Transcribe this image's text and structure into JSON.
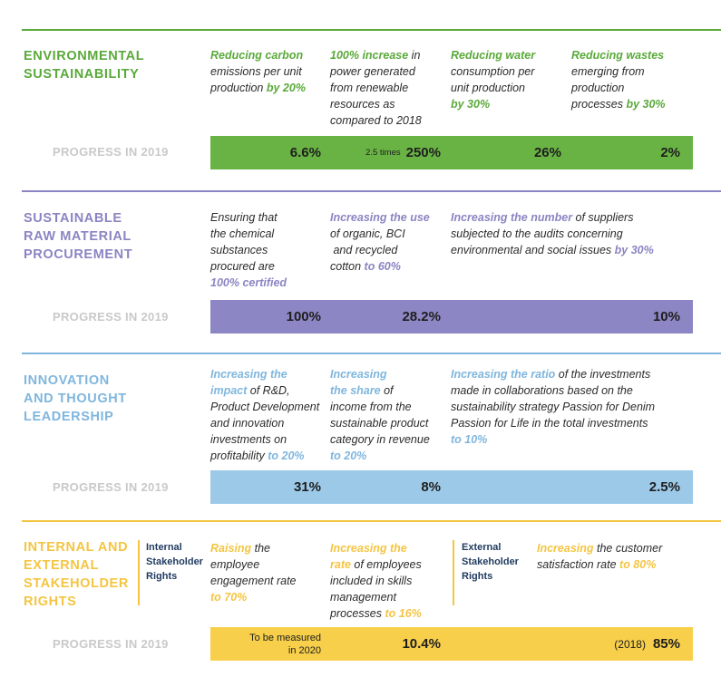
{
  "colors": {
    "green": "#5aa93a",
    "green_box": "#69b344",
    "purple": "#8b84c2",
    "purple_box": "#8c86c4",
    "blue": "#7fb6dd",
    "blue_box": "#9cc9e8",
    "yellow": "#f4c542",
    "yellow_box": "#f7cf4a"
  },
  "progress_label": "PROGRESS IN 2019",
  "sections": {
    "environmental": {
      "title": [
        "ENVIRONMENTAL",
        "SUSTAINABILITY"
      ],
      "goals": [
        {
          "lines": [
            "Reducing carbon",
            "emissions per unit",
            "production"
          ],
          "highlight_first": "Reducing carbon",
          "highlight_end": "by 20%"
        },
        {
          "line1_hl": "100% increase",
          "line1_rest": " in",
          "lines": [
            "power generated",
            "from renewable",
            "resources as",
            "compared to 2018"
          ]
        },
        {
          "line1_hl": "Reducing water",
          "lines": [
            "consumption per",
            "unit production"
          ],
          "highlight_end": "by 30%"
        },
        {
          "line1_hl": "Reducing wastes",
          "lines": [
            "emerging from",
            "production",
            "processes"
          ],
          "highlight_end": "by 30%"
        }
      ],
      "progress": [
        {
          "value": "6.6%"
        },
        {
          "prefix": "2.5 times",
          "value": "250%"
        },
        {
          "value": "26%"
        },
        {
          "value": "2%"
        }
      ]
    },
    "raw_material": {
      "title": [
        "SUSTAINABLE",
        "RAW MATERIAL",
        "PROCUREMENT"
      ],
      "goal1": {
        "lines": [
          "Ensuring that",
          "the chemical",
          "substances",
          "procured are"
        ],
        "highlight_end": "100% certified"
      },
      "goal2": {
        "line1_hl": "Increasing the use",
        "lines": [
          "of organic, BCI",
          " and recycled",
          "cotton"
        ],
        "highlight_end": "to 60%"
      },
      "goal3": {
        "line1_hl": "Increasing the number",
        "line1_rest": " of suppliers",
        "lines": [
          "subjected to the audits concerning",
          "environmental and social issues"
        ],
        "highlight_end": "by 30%"
      },
      "progress": [
        {
          "value": "100%"
        },
        {
          "value": "28.2%"
        },
        {
          "value": "10%"
        }
      ]
    },
    "innovation": {
      "title": [
        "INNOVATION",
        "AND THOUGHT",
        "LEADERSHIP"
      ],
      "goal1": {
        "hl1": "Increasing the",
        "hl2": "impact",
        "rest2": " of R&D,",
        "lines": [
          "Product Development",
          "and innovation",
          "investments on",
          "profitability"
        ],
        "highlight_end": "to 20%"
      },
      "goal2": {
        "hl1": "Increasing",
        "hl2": "the share",
        "rest2": " of",
        "lines": [
          "income from the",
          "sustainable product",
          "category in revenue"
        ],
        "highlight_end": "to 20%"
      },
      "goal3": {
        "line1_hl": "Increasing the ratio",
        "line1_rest": " of the investments",
        "lines": [
          "made in collaborations based on the",
          "sustainability strategy Passion for Denim",
          "Passion for Life in the total investments"
        ],
        "highlight_end": "to 10%"
      },
      "progress": [
        {
          "value": "31%"
        },
        {
          "value": "8%"
        },
        {
          "value": "2.5%"
        }
      ]
    },
    "stakeholder": {
      "title": [
        "INTERNAL AND",
        "EXTERNAL",
        "STAKEHOLDER",
        "RIGHTS"
      ],
      "internal_label": [
        "Internal",
        "Stakeholder",
        "Rights"
      ],
      "external_label": [
        "External",
        "Stakeholder",
        "Rights"
      ],
      "goal1": {
        "line1_hl": "Raising",
        "line1_rest": " the",
        "lines": [
          "employee",
          "engagement rate"
        ],
        "highlight_end": "to 70%"
      },
      "goal2": {
        "line1_hl": "Increasing the",
        "hl2": "rate",
        "rest2": " of employees",
        "lines": [
          "included in skills",
          "management",
          "processes"
        ],
        "highlight_end": "to 16%"
      },
      "goal3": {
        "line1_hl": "Increasing",
        "line1_rest": " the customer",
        "lines": [
          "satisfaction rate"
        ],
        "highlight_end": "to 80%"
      },
      "progress": [
        {
          "note": [
            "To be measured",
            "in 2020"
          ]
        },
        {
          "value": "10.4%"
        },
        {
          "prefix": "(2018)",
          "value": "85%"
        }
      ]
    }
  }
}
